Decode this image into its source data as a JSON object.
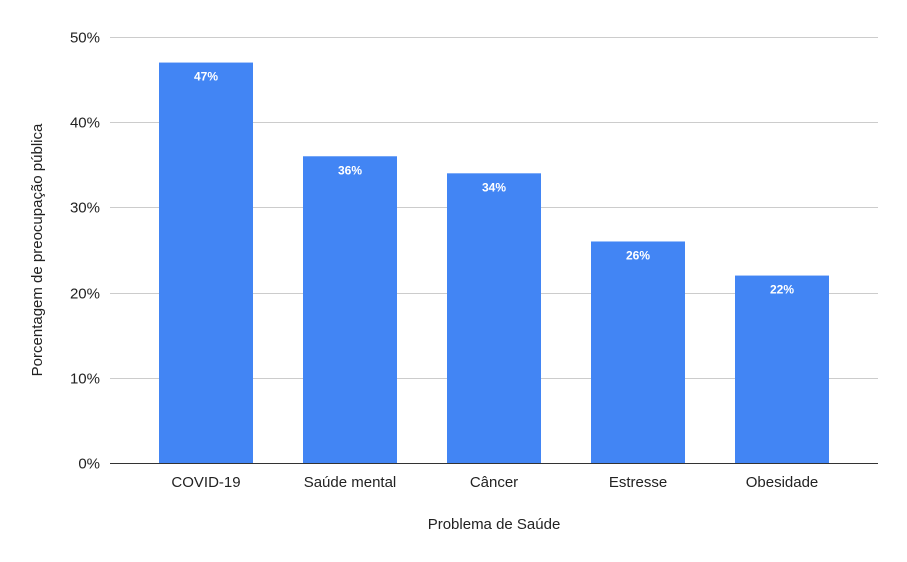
{
  "chart_data": {
    "type": "bar",
    "categories": [
      "COVID-19",
      "Saúde mental",
      "Câncer",
      "Estresse",
      "Obesidade"
    ],
    "values": [
      47,
      36,
      34,
      26,
      22
    ],
    "data_labels": [
      "47%",
      "36%",
      "34%",
      "26%",
      "22%"
    ],
    "xlabel": "Problema de Saúde",
    "ylabel": "Porcentagem de preocupação pública",
    "ylim": [
      0,
      50
    ],
    "yticks": [
      0,
      10,
      20,
      30,
      40,
      50
    ],
    "ytick_labels": [
      "0%",
      "10%",
      "20%",
      "30%",
      "40%",
      "50%"
    ],
    "grid": true,
    "legend": "none",
    "bar_color": "#4285f4"
  }
}
